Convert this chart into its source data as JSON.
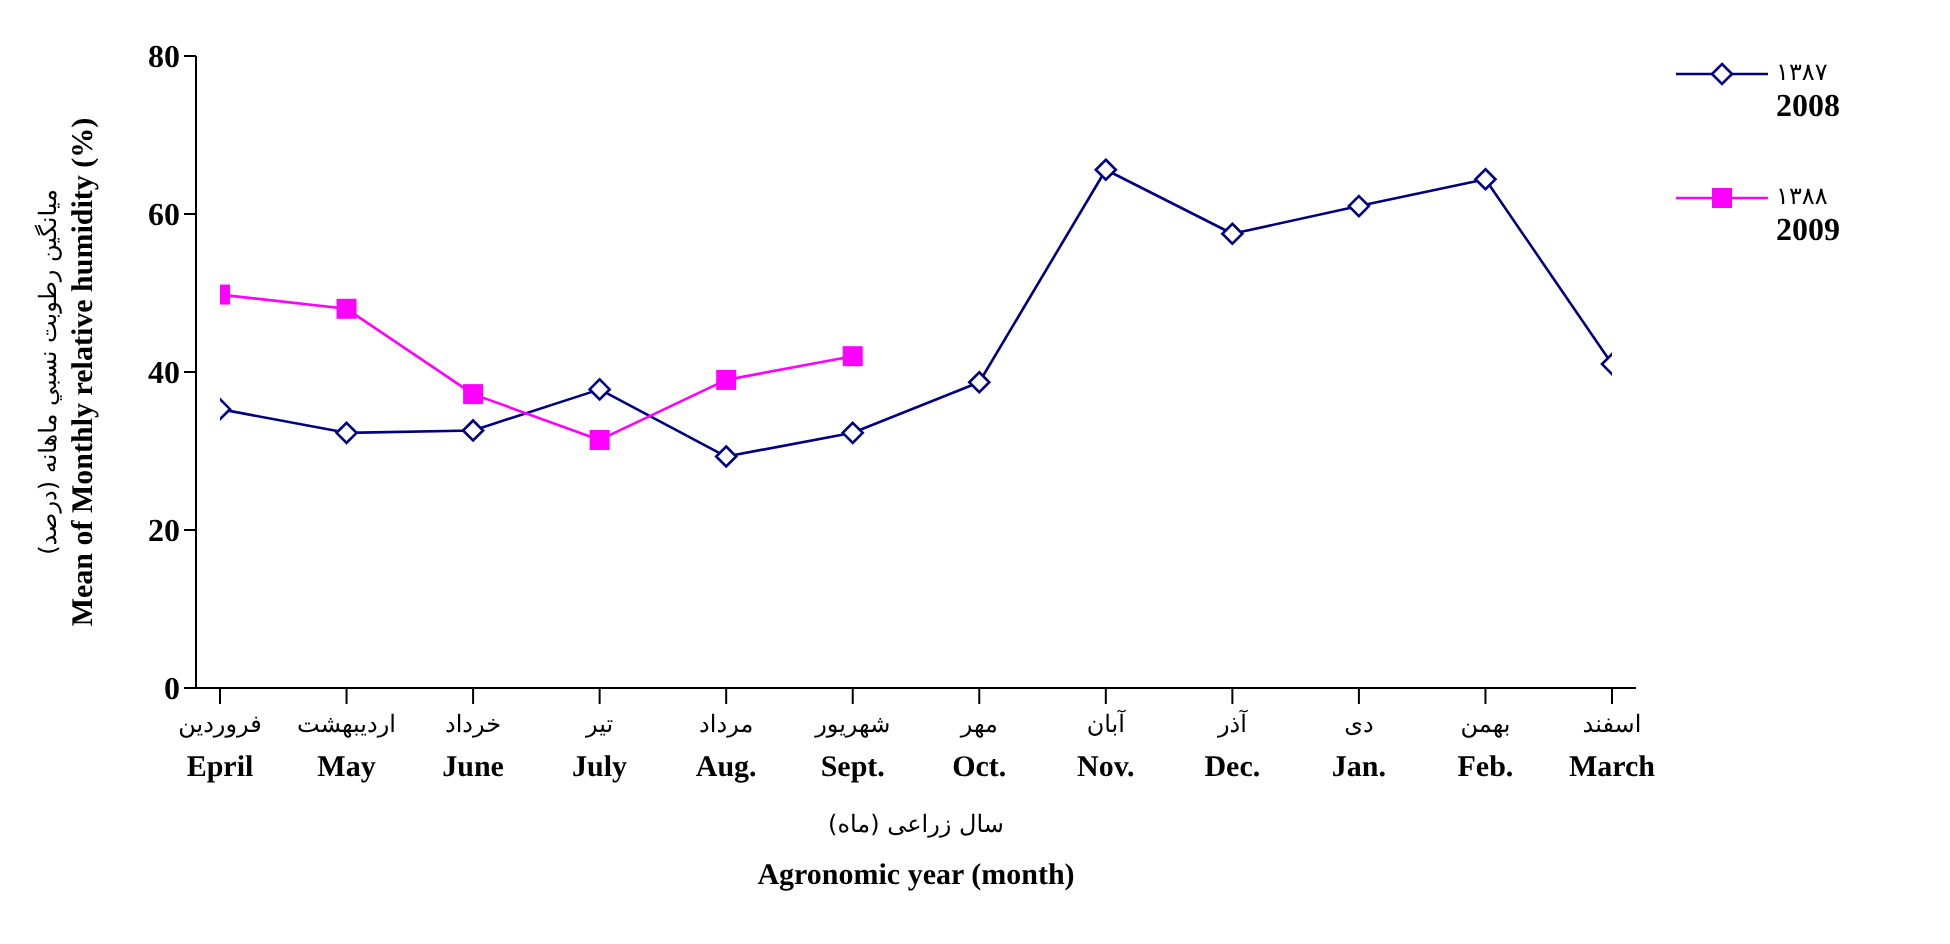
{
  "chart_data": {
    "type": "line",
    "ylabel": "میانگین رطوبت نسبي ماهانه (درصد)\nMean of Monthly relative humidity (%)",
    "xlabel": "سال زراعی (ماه)\nAgronomic year (month)",
    "categories": [
      "فروردین\nEpril",
      "اردیبهشت\nMay",
      "خرداد\nJune",
      "تیر\nJuly",
      "مرداد\nAug.",
      "شهریور\nSept.",
      "مهر\nOct.",
      "آبان\nNov.",
      "آذر\nDec.",
      "دی\nJan.",
      "بهمن\nFeb.",
      "اسفند\nMarch"
    ],
    "series": [
      {
        "name": "۱۳۸۷\n2008",
        "color": "#000080",
        "marker": "diamond",
        "values": [
          35.3,
          32.3,
          32.6,
          37.8,
          29.3,
          32.3,
          38.7,
          65.6,
          57.5,
          61,
          64.4,
          41
        ]
      },
      {
        "name": "۱۳۸۸\n2009",
        "color": "#ff00ff",
        "marker": "square",
        "values": [
          49.8,
          48,
          37.2,
          31.4,
          39,
          42,
          null,
          null,
          null,
          null,
          null,
          null
        ]
      }
    ],
    "ylim": [
      0,
      80
    ],
    "yticks": [
      0,
      20,
      40,
      60,
      80
    ],
    "grid": false,
    "legend": "right"
  }
}
